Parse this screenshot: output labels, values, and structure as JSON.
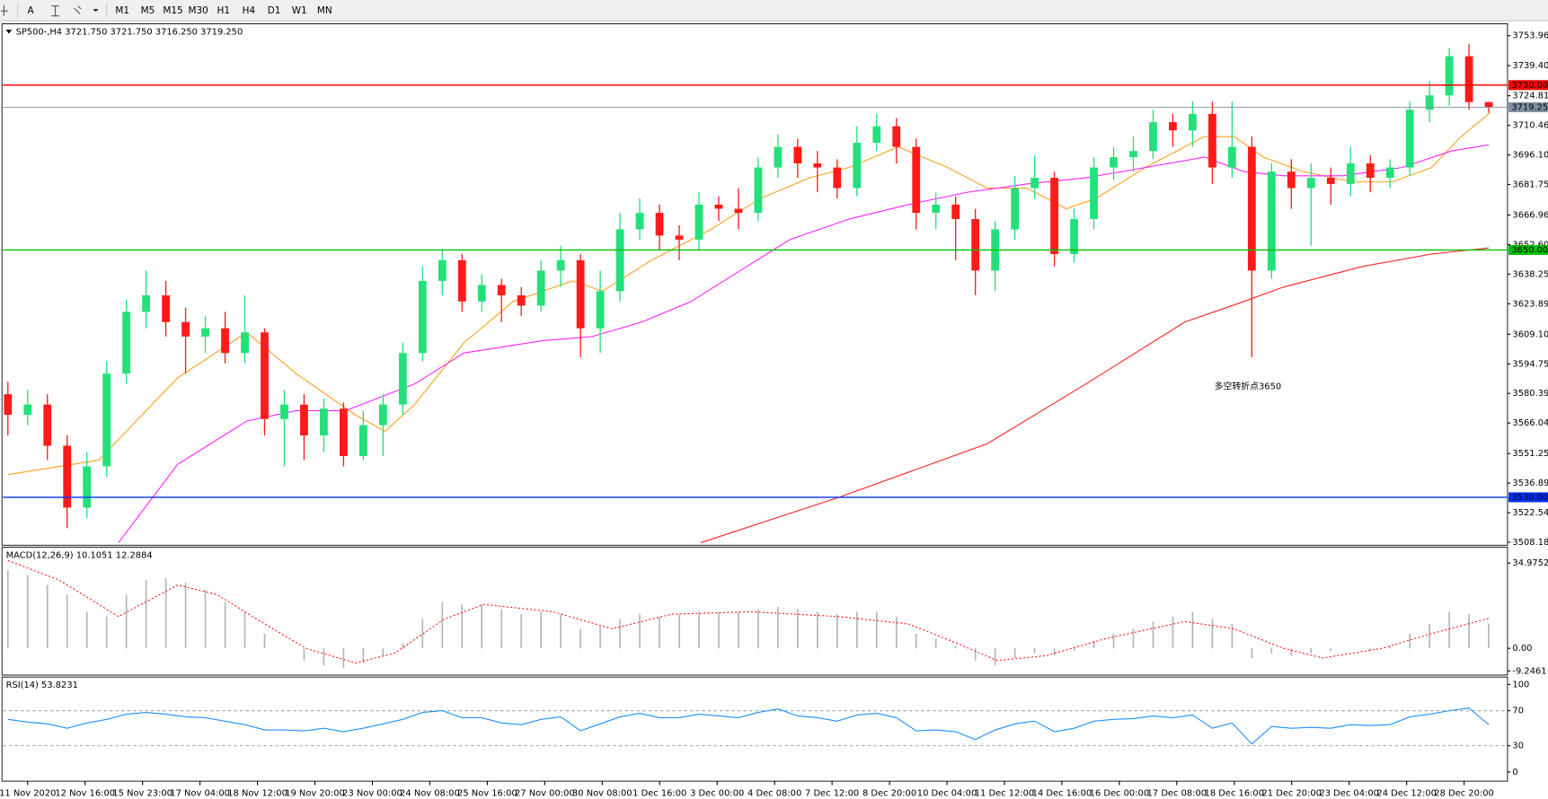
{
  "toolbar": {
    "text_tool": "A",
    "timeframes": [
      "M1",
      "M5",
      "M15",
      "M30",
      "H1",
      "H4",
      "D1",
      "W1",
      "MN"
    ]
  },
  "chart_data": [
    {
      "type": "candlestick",
      "title": "SP500-,H4  3721.750 3721.750 3716.250 3719.250",
      "up_color": "#22e07a",
      "down_color": "#ff1a1a",
      "open": [
        3580,
        3570,
        3575,
        3555,
        3525,
        3545,
        3590,
        3620,
        3628,
        3615,
        3608,
        3612,
        3600,
        3610,
        3568,
        3575,
        3560,
        3573,
        3550,
        3565,
        3575,
        3600,
        3635,
        3645,
        3625,
        3633,
        3628,
        3623,
        3640,
        3645,
        3612,
        3630,
        3660,
        3668,
        3657,
        3655,
        3672,
        3670,
        3668,
        3690,
        3700,
        3692,
        3690,
        3680,
        3702,
        3710,
        3700,
        3668,
        3672,
        3665,
        3640,
        3660,
        3680,
        3685,
        3648,
        3665,
        3690,
        3695,
        3698,
        3712,
        3708,
        3716,
        3690,
        3700,
        3640,
        3688,
        3680,
        3685,
        3682,
        3692,
        3685,
        3690,
        3718,
        3725,
        3744,
        3721.75
      ],
      "high": [
        3586,
        3582,
        3580,
        3560,
        3552,
        3596,
        3626,
        3640,
        3635,
        3622,
        3618,
        3620,
        3628,
        3612,
        3582,
        3580,
        3578,
        3576,
        3572,
        3580,
        3605,
        3642,
        3650,
        3648,
        3638,
        3636,
        3632,
        3645,
        3652,
        3648,
        3640,
        3668,
        3675,
        3672,
        3662,
        3678,
        3676,
        3680,
        3695,
        3706,
        3704,
        3698,
        3694,
        3710,
        3716,
        3714,
        3704,
        3678,
        3676,
        3670,
        3664,
        3686,
        3696,
        3688,
        3670,
        3695,
        3700,
        3705,
        3718,
        3716,
        3722,
        3722,
        3722,
        3705,
        3692,
        3694,
        3692,
        3690,
        3700,
        3696,
        3694,
        3722,
        3732,
        3748,
        3750,
        3721.75
      ],
      "low": [
        3560,
        3565,
        3548,
        3515,
        3520,
        3540,
        3585,
        3612,
        3608,
        3590,
        3600,
        3595,
        3595,
        3560,
        3545,
        3548,
        3552,
        3545,
        3548,
        3550,
        3570,
        3596,
        3628,
        3620,
        3620,
        3615,
        3618,
        3620,
        3632,
        3598,
        3600,
        3625,
        3655,
        3650,
        3645,
        3650,
        3664,
        3660,
        3664,
        3685,
        3685,
        3678,
        3675,
        3676,
        3698,
        3692,
        3660,
        3660,
        3645,
        3628,
        3630,
        3655,
        3675,
        3642,
        3644,
        3660,
        3684,
        3688,
        3694,
        3700,
        3700,
        3682,
        3685,
        3598,
        3636,
        3670,
        3652,
        3672,
        3676,
        3678,
        3680,
        3686,
        3712,
        3720,
        3718,
        3716.25
      ],
      "close": [
        3570,
        3575,
        3555,
        3525,
        3545,
        3590,
        3620,
        3628,
        3615,
        3608,
        3612,
        3600,
        3610,
        3568,
        3575,
        3560,
        3573,
        3550,
        3565,
        3575,
        3600,
        3635,
        3645,
        3625,
        3633,
        3628,
        3623,
        3640,
        3645,
        3612,
        3630,
        3660,
        3668,
        3657,
        3655,
        3672,
        3670,
        3668,
        3690,
        3700,
        3692,
        3690,
        3680,
        3702,
        3710,
        3700,
        3668,
        3672,
        3665,
        3640,
        3660,
        3680,
        3685,
        3648,
        3665,
        3690,
        3695,
        3698,
        3712,
        3708,
        3716,
        3690,
        3700,
        3640,
        3688,
        3680,
        3685,
        3682,
        3692,
        3685,
        3690,
        3718,
        3725,
        3744,
        3721.75,
        3719.25
      ],
      "lines": [
        {
          "color": "#ffa020",
          "x": [
            0,
            4.6,
            8.6,
            12.1,
            14.6,
            17.6,
            19.1,
            20.6,
            23.1,
            25.6,
            28.6,
            30.1,
            32.6,
            35.6,
            38.1,
            40.6,
            42.6,
            45.1,
            47.6,
            49.6,
            51.6,
            53.6,
            55.1,
            57.6,
            60.6,
            62.1,
            63.6,
            65.6,
            68.1,
            70.1,
            72.1,
            73.6,
            75
          ],
          "values": [
            3541,
            3548,
            3588,
            3610,
            3590,
            3570,
            3562,
            3575,
            3605,
            3625,
            3635,
            3630,
            3645,
            3660,
            3675,
            3685,
            3690,
            3700,
            3690,
            3680,
            3680,
            3670,
            3675,
            3690,
            3705,
            3705,
            3695,
            3688,
            3683,
            3683,
            3690,
            3705,
            3716
          ]
        },
        {
          "color": "#ff20ff",
          "x": [
            5.6,
            8.6,
            12.1,
            14.6,
            17.1,
            20.6,
            23.1,
            27.1,
            29.6,
            32.1,
            34.6,
            37.1,
            39.6,
            42.6,
            45.6,
            48.6,
            51.6,
            54.6,
            57.6,
            60.6,
            62.6,
            64.6,
            67.6,
            70.6,
            73.1,
            75
          ],
          "values": [
            3508,
            3546,
            3567,
            3572,
            3572,
            3585,
            3600,
            3606,
            3608,
            3615,
            3625,
            3640,
            3655,
            3665,
            3672,
            3678,
            3682,
            3685,
            3690,
            3695,
            3688,
            3686,
            3686,
            3690,
            3698,
            3701
          ]
        },
        {
          "color": "#ff2020",
          "x": [
            35.1,
            42.1,
            49.6,
            54.6,
            59.6,
            62.6,
            64.6,
            68.6,
            72.1,
            75
          ],
          "values": [
            3508,
            3530,
            3556,
            3585,
            3615,
            3625,
            3632,
            3642,
            3648,
            3651
          ]
        }
      ],
      "levels": [
        {
          "value": 3730,
          "label": "3730.000",
          "color": "#ff0000"
        },
        {
          "value": 3719.25,
          "label": "3719.250",
          "color": "#8090a0"
        },
        {
          "value": 3650,
          "label": "3650.000",
          "color": "#00c000"
        },
        {
          "value": 3530,
          "label": "3530.000",
          "color": "#0030ff"
        }
      ],
      "ylim": [
        3506.74,
        3759.25
      ],
      "yticks": [
        {
          "value": 3753.96,
          "label": "3753.960"
        },
        {
          "value": 3739.405,
          "label": "3739.405"
        },
        {
          "value": 3724.815,
          "label": "3724.815"
        },
        {
          "value": 3710.465,
          "label": "3710.465"
        },
        {
          "value": 3696.105,
          "label": "3696.105"
        },
        {
          "value": 3681.75,
          "label": "3681.750"
        },
        {
          "value": 3666.96,
          "label": "3666.960"
        },
        {
          "value": 3652.6,
          "label": "3652.600"
        },
        {
          "value": 3638.25,
          "label": "3638.250"
        },
        {
          "value": 3623.895,
          "label": "3623.895"
        },
        {
          "value": 3609.105,
          "label": "3609.105"
        },
        {
          "value": 3594.75,
          "label": "3594.750"
        },
        {
          "value": 3580.395,
          "label": "3580.395"
        },
        {
          "value": 3566.04,
          "label": "3566.040"
        },
        {
          "value": 3551.25,
          "label": "3551.250"
        },
        {
          "value": 3536.895,
          "label": "3536.895"
        },
        {
          "value": 3522.54,
          "label": "3522.540"
        },
        {
          "value": 3508.185,
          "label": "3508.185"
        }
      ],
      "x_labels": [
        "11 Nov 2020",
        "12 Nov 16:00",
        "15 Nov 23:00",
        "17 Nov 04:00",
        "18 Nov 12:00",
        "19 Nov 20:00",
        "23 Nov 00:00",
        "24 Nov 08:00",
        "25 Nov 16:00",
        "27 Nov 00:00",
        "30 Nov 08:00",
        "1 Dec 16:00",
        "3 Dec 00:00",
        "4 Dec 08:00",
        "7 Dec 12:00",
        "8 Dec 20:00",
        "10 Dec 04:00",
        "11 Dec 12:00",
        "14 Dec 16:00",
        "16 Dec 00:00",
        "17 Dec 08:00",
        "18 Dec 16:00",
        "21 Dec 20:00",
        "23 Dec 04:00",
        "24 Dec 12:00",
        "28 Dec 20:00"
      ],
      "annotation": "多空转折点3650"
    },
    {
      "type": "macd",
      "title": "MACD(12,26,9) 10.1051 12.2884",
      "histogram_color": "#b4b4b4",
      "histogram": [
        32,
        30,
        26,
        22,
        15,
        13,
        22,
        28,
        29,
        27,
        24,
        19,
        15,
        6,
        0,
        -5,
        -7,
        -8,
        -6,
        -3,
        2,
        12,
        19,
        18,
        18,
        16,
        14,
        15,
        14,
        8,
        9,
        12,
        14,
        13,
        14,
        15,
        15,
        15,
        16,
        17,
        16,
        15,
        14,
        15,
        15,
        13,
        6,
        4,
        1,
        -5,
        -7,
        -4,
        -2,
        -3,
        -1,
        3,
        6,
        8,
        11,
        13,
        15,
        12,
        10,
        -4,
        -2,
        -3,
        -2,
        -1,
        0,
        -1,
        1,
        6,
        10,
        15,
        14,
        10
      ],
      "signal": {
        "color": "#ff2020",
        "x": [
          0,
          2.6,
          5.6,
          8.6,
          10.6,
          12.6,
          15.1,
          17.6,
          19.6,
          22.1,
          24.1,
          27.6,
          30.6,
          33.6,
          37.6,
          42.1,
          45.6,
          48.1,
          50.1,
          52.6,
          55.6,
          59.6,
          62.1,
          64.6,
          66.6,
          69.6,
          72.1,
          75
        ],
        "values": [
          36,
          28,
          13,
          26,
          22,
          12,
          0,
          -6,
          -2,
          12,
          18,
          15,
          8,
          14,
          15,
          13,
          10,
          2,
          -5,
          -3,
          4,
          11,
          8,
          0,
          -4,
          0,
          6,
          12.3
        ]
      },
      "ylim": [
        -10.57,
        41.07
      ],
      "yticks": [
        34.9752,
        {
          "value": 0,
          "label": "0.00"
        },
        -9.2461
      ]
    },
    {
      "type": "rsi",
      "title": "RSI(14) 53.8231",
      "color": "#1e90ff",
      "values": [
        60,
        57,
        55,
        50,
        56,
        60,
        66,
        68,
        66,
        63,
        62,
        58,
        54,
        48,
        48,
        47,
        50,
        46,
        50,
        55,
        60,
        68,
        70,
        62,
        62,
        56,
        54,
        60,
        63,
        47,
        55,
        63,
        67,
        62,
        62,
        66,
        64,
        62,
        68,
        72,
        64,
        62,
        58,
        65,
        67,
        62,
        47,
        48,
        46,
        37,
        48,
        55,
        58,
        46,
        50,
        58,
        60,
        61,
        64,
        62,
        65,
        50,
        56,
        32,
        52,
        50,
        51,
        50,
        54,
        53,
        54,
        63,
        66,
        70,
        73,
        54
      ],
      "levels": [
        70,
        30
      ],
      "ylim": [
        -9.4,
        107.3
      ],
      "yticks": [
        100,
        70,
        30,
        0
      ]
    }
  ]
}
